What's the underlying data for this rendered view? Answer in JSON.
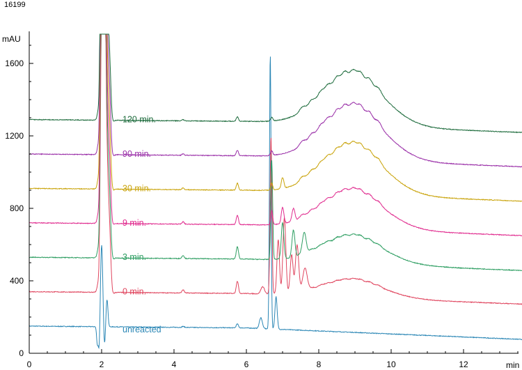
{
  "header": {
    "id_text": "16199"
  },
  "chart_data": {
    "type": "line",
    "title": "",
    "xlabel": "min",
    "ylabel": "mAU",
    "xlim": [
      0,
      13.8
    ],
    "ylim": [
      0,
      1750
    ],
    "x_ticks": [
      0,
      2,
      4,
      6,
      8,
      10,
      12
    ],
    "y_ticks": [
      0,
      400,
      800,
      1200,
      1600
    ],
    "grid": false,
    "series": [
      {
        "name": "unreacted",
        "color": "#2a86b5",
        "baseline": 150,
        "end": 75,
        "hump": 0,
        "solvent": "dip",
        "early": 0.25,
        "big_peaks": [
          [
            6.4,
            60,
            0.04
          ],
          [
            6.66,
            1520,
            0.022
          ],
          [
            6.82,
            180,
            0.03
          ]
        ]
      },
      {
        "name": "0 min.",
        "color": "#e0455e",
        "baseline": 340,
        "end": 270,
        "hump": 130,
        "solvent": "sat",
        "early": 0.8,
        "big_peaks": [
          [
            6.45,
            40,
            0.05
          ],
          [
            6.68,
            870,
            0.025
          ],
          [
            6.88,
            300,
            0.035
          ],
          [
            7.05,
            420,
            0.04
          ],
          [
            7.25,
            210,
            0.04
          ],
          [
            7.4,
            260,
            0.045
          ],
          [
            7.62,
            120,
            0.06
          ]
        ]
      },
      {
        "name": "3 min.",
        "color": "#2e9e62",
        "baseline": 530,
        "end": 455,
        "hump": 200,
        "solvent": "sat",
        "early": 0.8,
        "big_peaks": [
          [
            6.7,
            550,
            0.025
          ],
          [
            7.0,
            200,
            0.035
          ],
          [
            7.3,
            150,
            0.04
          ],
          [
            7.6,
            110,
            0.05
          ]
        ]
      },
      {
        "name": "9 min.",
        "color": "#e02a8e",
        "baseline": 720,
        "end": 648,
        "hump": 280,
        "solvent": "sat",
        "early": 0.6,
        "big_peaks": [
          [
            6.7,
            80,
            0.025
          ],
          [
            7.0,
            90,
            0.035
          ],
          [
            7.3,
            70,
            0.04
          ]
        ]
      },
      {
        "name": "30 min.",
        "color": "#c9a30a",
        "baseline": 910,
        "end": 838,
        "hump": 360,
        "solvent": "sat",
        "early": 0.45,
        "big_peaks": [
          [
            6.7,
            40,
            0.025
          ],
          [
            7.0,
            60,
            0.035
          ]
        ]
      },
      {
        "name": "90 min.",
        "color": "#9a2fa8",
        "baseline": 1100,
        "end": 1028,
        "hump": 390,
        "solvent": "sat",
        "early": 0.35,
        "big_peaks": [
          [
            6.7,
            25,
            0.03
          ]
        ]
      },
      {
        "name": "120 min.",
        "color": "#1d6b3c",
        "baseline": 1290,
        "end": 1217,
        "hump": 380,
        "solvent": "sat",
        "early": 0.3,
        "big_peaks": [
          [
            6.7,
            20,
            0.03
          ]
        ]
      }
    ]
  }
}
